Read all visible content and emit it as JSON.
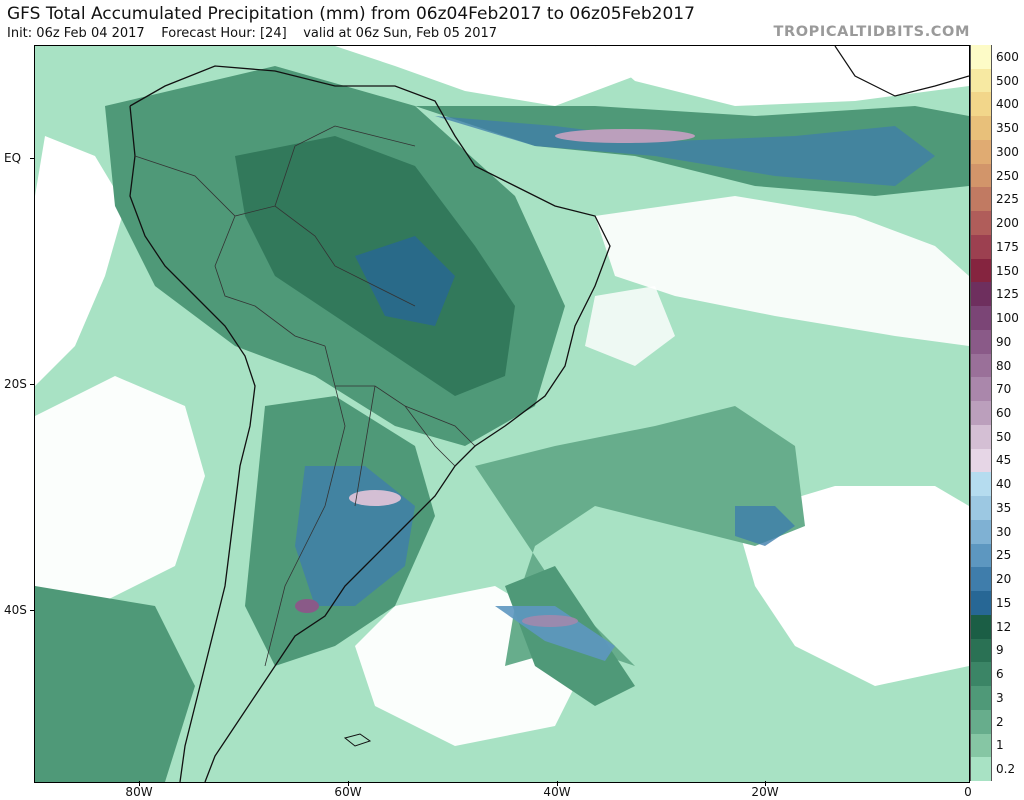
{
  "header": {
    "title": "GFS Total Accumulated Precipitation (mm) from 06z04Feb2017 to 06z05Feb2017",
    "init": "Init: 06z Feb 04 2017",
    "forecast_hour": "Forecast Hour: [24]",
    "valid": "valid at 06z Sun, Feb 05 2017",
    "source": "TROPICALTIDBITS.COM"
  },
  "axes": {
    "lat_labels": [
      "EQ",
      "20S",
      "40S"
    ],
    "lon_labels": [
      "80W",
      "60W",
      "40W",
      "20W",
      "0"
    ]
  },
  "legend": {
    "unit": "mm",
    "levels": [
      "600",
      "500",
      "400",
      "350",
      "300",
      "250",
      "225",
      "200",
      "175",
      "150",
      "125",
      "100",
      "90",
      "80",
      "70",
      "60",
      "50",
      "45",
      "40",
      "35",
      "30",
      "25",
      "20",
      "15",
      "12",
      "9",
      "6",
      "3",
      "2",
      "1",
      "0.2"
    ],
    "colors": [
      "#fdfbc7",
      "#f7e9a2",
      "#f2d68a",
      "#e8c07a",
      "#e0ab72",
      "#d2956a",
      "#c17a62",
      "#b05d5a",
      "#9c4050",
      "#85243f",
      "#6e2f5e",
      "#7b4576",
      "#8a5a88",
      "#9a7099",
      "#aa87ab",
      "#bb9fbc",
      "#d4bfd4",
      "#e6d6e6",
      "#b5dcef",
      "#9cc8e2",
      "#7fb1d3",
      "#5d97c0",
      "#3f7dab",
      "#276795",
      "#1b5e45",
      "#2a7154",
      "#3b8566",
      "#4f9978",
      "#67ad8c",
      "#86c6a4",
      "#a8e2c4"
    ]
  },
  "map_colors": {
    "land_line": "#111111",
    "background_light": "#a8e2c4",
    "precip_low": "#86c6a4",
    "precip_mid": "#4f9978",
    "precip_high": "#2a7154",
    "precip_heavy": "#3f7dab",
    "precip_max": "#bb9fbc"
  }
}
